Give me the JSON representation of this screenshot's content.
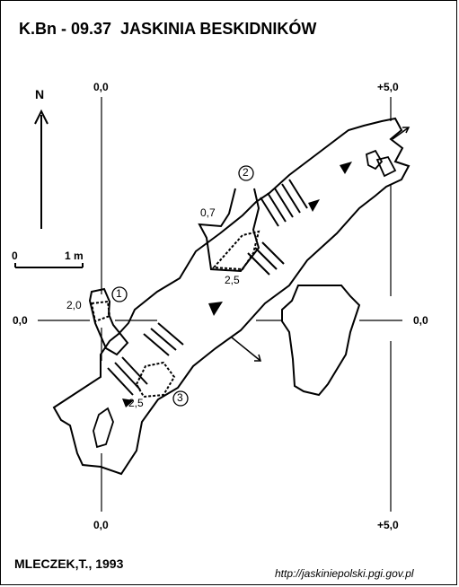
{
  "header": {
    "code": "K.Bn - 09.37",
    "name": "JASKINIA BESKIDNIKÓW"
  },
  "north_label": "N",
  "scale": {
    "zero": "0",
    "one": "1 m"
  },
  "grid_labels": {
    "top_left": "0,0",
    "top_right": "+5,0",
    "left_mid": "0,0",
    "right_mid": "0,0",
    "bottom_left": "0,0",
    "bottom_right": "+5,0"
  },
  "points": [
    "1",
    "2",
    "3"
  ],
  "depths": {
    "d1": "2,0",
    "d2": "0,7",
    "d3": "2,5",
    "d4": "2,5"
  },
  "footer": {
    "author": "MLECZEK,T., 1993",
    "url": "http://jaskiniepolski.pgi.gov.pl"
  }
}
